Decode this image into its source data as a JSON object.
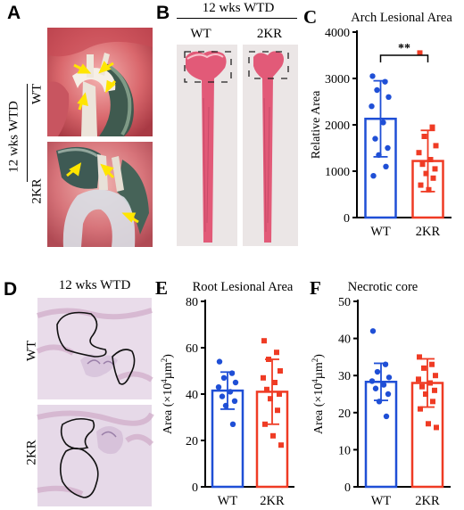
{
  "panels": {
    "A": {
      "letter": "A",
      "side_title": "12 wks WTD",
      "row_labels": [
        "WT",
        "2KR"
      ]
    },
    "B": {
      "letter": "B",
      "title": "12 wks WTD",
      "col_labels": [
        "WT",
        "2KR"
      ]
    },
    "D": {
      "letter": "D",
      "title": "12 wks WTD",
      "row_labels": [
        "WT",
        "2KR"
      ]
    }
  },
  "colors": {
    "wt": "#1f4fd6",
    "kr": "#ef3b24",
    "tissue_pink": "#e25a78",
    "arrow_yellow": "#ffe500"
  },
  "chart_data": [
    {
      "id": "C",
      "letter": "C",
      "type": "bar",
      "title": "Arch Lesional Area",
      "ylabel": "Relative Area",
      "ylabel_html": "Relative Area",
      "categories": [
        "WT",
        "2KR"
      ],
      "ylim": [
        0,
        4000
      ],
      "yticks": [
        0,
        1000,
        2000,
        3000,
        4000
      ],
      "significance": "**",
      "series": [
        {
          "category": "WT",
          "mean": 2130,
          "sd": 820,
          "marker": "circle",
          "points": [
            3050,
            2930,
            2750,
            2600,
            2400,
            2050,
            1700,
            1500,
            1350,
            1100,
            900
          ]
        },
        {
          "category": "2KR",
          "mean": 1220,
          "sd": 660,
          "marker": "square",
          "points": [
            3550,
            1950,
            1750,
            1550,
            1400,
            1250,
            1150,
            1050,
            950,
            850,
            700,
            600
          ]
        }
      ]
    },
    {
      "id": "E",
      "letter": "E",
      "type": "bar",
      "title": "Root Lesional Area",
      "ylabel": "Area (×10⁴µm²)",
      "ylabel_html": "Area (×10<tspan baseline-shift='super' font-size='9'>4</tspan>µm<tspan baseline-shift='super' font-size='9'>2</tspan>)",
      "categories": [
        "WT",
        "2KR"
      ],
      "ylim": [
        0,
        80
      ],
      "yticks": [
        0,
        20,
        40,
        60,
        80
      ],
      "series": [
        {
          "category": "WT",
          "mean": 41.5,
          "sd": 8,
          "marker": "circle",
          "points": [
            54,
            49,
            47,
            45,
            43,
            41,
            39,
            37,
            35,
            27
          ]
        },
        {
          "category": "2KR",
          "mean": 41,
          "sd": 14,
          "marker": "square",
          "points": [
            63,
            58,
            55,
            50,
            47,
            45,
            42,
            40,
            38,
            33,
            27,
            22,
            18
          ]
        }
      ]
    },
    {
      "id": "F",
      "letter": "F",
      "type": "bar",
      "title": "Necrotic core",
      "ylabel": "Area (×10⁴µm²)",
      "ylabel_html": "Area (×10<tspan baseline-shift='super' font-size='9'>4</tspan>µm<tspan baseline-shift='super' font-size='9'>2</tspan>)",
      "categories": [
        "WT",
        "2KR"
      ],
      "ylim": [
        0,
        50
      ],
      "yticks": [
        0,
        10,
        20,
        30,
        40,
        50
      ],
      "series": [
        {
          "category": "WT",
          "mean": 28.3,
          "sd": 5,
          "marker": "circle",
          "points": [
            42,
            33,
            31,
            29.5,
            28.5,
            27.5,
            26.5,
            25,
            23,
            19
          ]
        },
        {
          "category": "2KR",
          "mean": 28,
          "sd": 6.5,
          "marker": "square",
          "points": [
            35,
            33,
            32,
            30,
            29,
            28,
            27,
            26,
            25,
            23,
            21,
            17,
            16
          ]
        }
      ]
    }
  ]
}
